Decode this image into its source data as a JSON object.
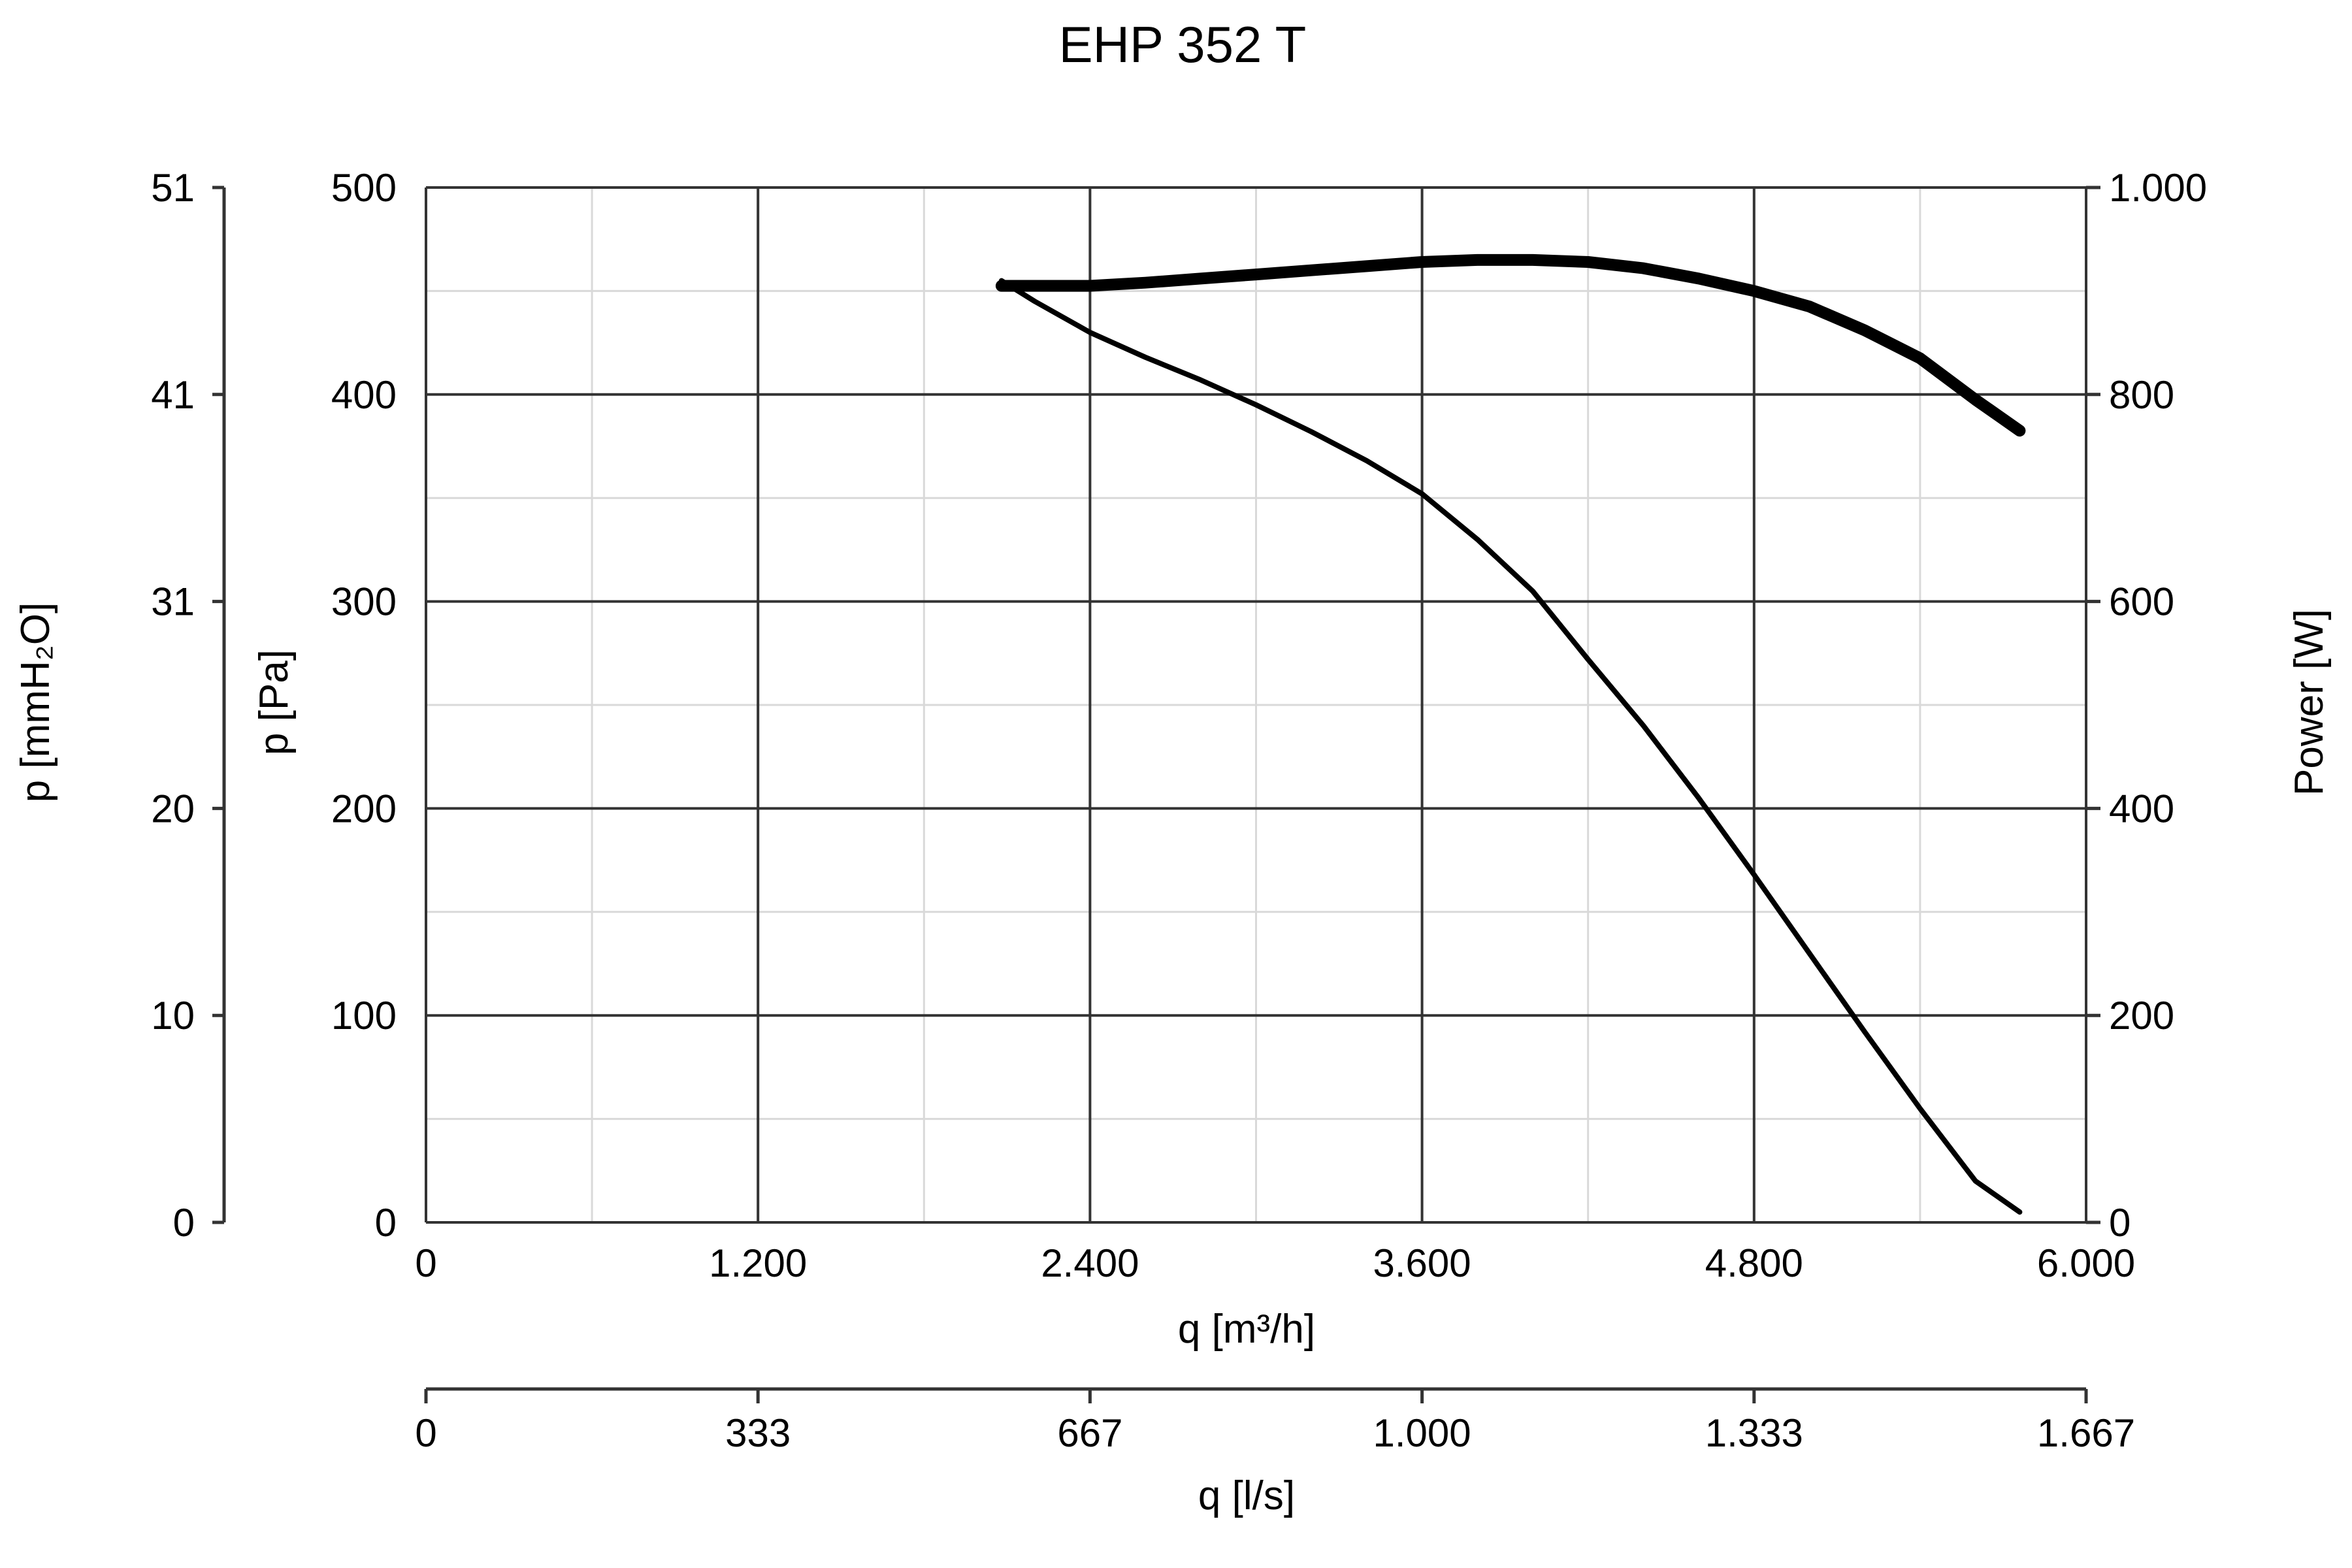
{
  "chart_data": {
    "type": "line",
    "title": "EHP 352 T",
    "xlabel": "q [m³/h]",
    "xlim": [
      0,
      6000
    ],
    "x_ticks": [
      0,
      1200,
      2400,
      3600,
      4800,
      6000
    ],
    "x_tick_labels": [
      "0",
      "1.200",
      "2.400",
      "3.600",
      "4.800",
      "6.000"
    ],
    "x2label": "q [l/s]",
    "x2_tick_labels": [
      "0",
      "333",
      "667",
      "1.000",
      "1.333",
      "1.667"
    ],
    "ylabel": "p [Pa]",
    "ylim": [
      0,
      500
    ],
    "y_ticks": [
      0,
      100,
      200,
      300,
      400,
      500
    ],
    "y_tick_labels": [
      "0",
      "100",
      "200",
      "300",
      "400",
      "500"
    ],
    "y_outer_label": "p [mmH₂O]",
    "y_outer_tick_labels": [
      "0",
      "10",
      "20",
      "31",
      "41",
      "51"
    ],
    "y2label": "Power [W]",
    "y2lim": [
      0,
      1000
    ],
    "y2_ticks": [
      0,
      200,
      400,
      600,
      800,
      1000
    ],
    "y2_tick_labels": [
      "0",
      "200",
      "400",
      "600",
      "800",
      "1.000"
    ],
    "grid": true,
    "series": [
      {
        "axis": "y",
        "x": [
          2080,
          2200,
          2400,
          2600,
          2800,
          3000,
          3200,
          3400,
          3600,
          3800,
          4000,
          4200,
          4400,
          4600,
          4800,
          5000,
          5200,
          5400,
          5600,
          5760
        ],
        "values": [
          455,
          445,
          430,
          418,
          407,
          395,
          382,
          368,
          352,
          330,
          305,
          272,
          240,
          205,
          168,
          130,
          92,
          55,
          20,
          5
        ]
      },
      {
        "axis": "y2",
        "x": [
          2080,
          2200,
          2400,
          2600,
          2800,
          3000,
          3200,
          3400,
          3600,
          3800,
          4000,
          4200,
          4400,
          4600,
          4800,
          5000,
          5200,
          5400,
          5600,
          5760
        ],
        "values": [
          905,
          905,
          905,
          908,
          912,
          916,
          920,
          924,
          928,
          930,
          930,
          928,
          922,
          912,
          900,
          885,
          862,
          835,
          795,
          765
        ]
      }
    ]
  }
}
